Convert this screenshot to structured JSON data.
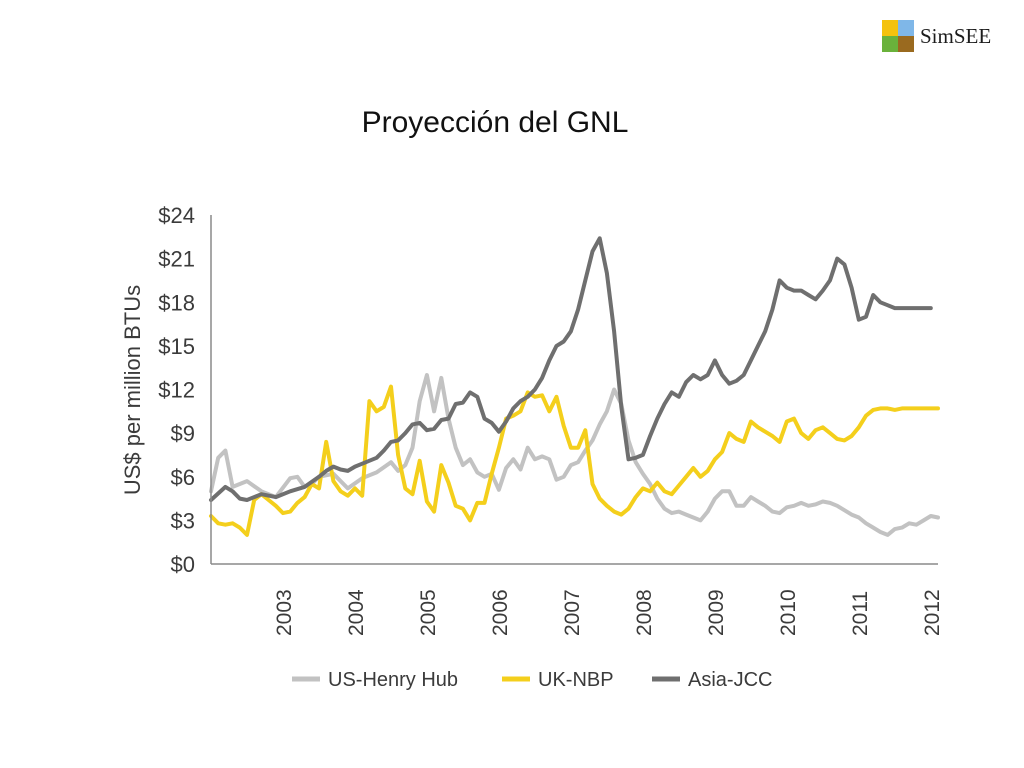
{
  "logo": {
    "text": "SimSEE",
    "colors": [
      "#f4c20d",
      "#7fb7e8",
      "#6ab23b",
      "#9a6a1f"
    ]
  },
  "page": {
    "title": "Proyección del GNL"
  },
  "chart_data": {
    "type": "line",
    "title": "",
    "ylabel": "US$ per million BTUs",
    "xlabel": "",
    "ylim": [
      0,
      24
    ],
    "xlim": [
      2002.5,
      2012.6
    ],
    "yticks": [
      0,
      3,
      6,
      9,
      12,
      15,
      18,
      21,
      24
    ],
    "yticklabels": [
      "$0",
      "$3",
      "$6",
      "$9",
      "$12",
      "$15",
      "$18",
      "$21",
      "$24"
    ],
    "xticklabels": [
      "2003",
      "2004",
      "2005",
      "2006",
      "2007",
      "2008",
      "2009",
      "2010",
      "2011",
      "2012"
    ],
    "grid": false,
    "legend_position": "bottom",
    "series": [
      {
        "name": "US-Henry Hub",
        "color": "#c2c2c2",
        "x": [
          2002.5,
          2002.6,
          2002.7,
          2002.8,
          2002.9,
          2003.0,
          2003.2,
          2003.4,
          2003.6,
          2003.7,
          2003.8,
          2003.9,
          2004.0,
          2004.2,
          2004.4,
          2004.6,
          2004.8,
          2005.0,
          2005.1,
          2005.2,
          2005.3,
          2005.4,
          2005.5,
          2005.6,
          2005.7,
          2005.8,
          2005.9,
          2006.0,
          2006.1,
          2006.2,
          2006.3,
          2006.4,
          2006.5,
          2006.6,
          2006.7,
          2006.8,
          2006.9,
          2007.0,
          2007.1,
          2007.2,
          2007.3,
          2007.4,
          2007.5,
          2007.6,
          2007.7,
          2007.8,
          2007.9,
          2008.0,
          2008.1,
          2008.2,
          2008.3,
          2008.4,
          2008.5,
          2008.6,
          2008.7,
          2008.8,
          2008.9,
          2009.0,
          2009.1,
          2009.2,
          2009.3,
          2009.4,
          2009.5,
          2009.6,
          2009.7,
          2009.8,
          2009.9,
          2010.0,
          2010.1,
          2010.2,
          2010.3,
          2010.4,
          2010.5,
          2010.6,
          2010.7,
          2010.8,
          2010.9,
          2011.0,
          2011.1,
          2011.2,
          2011.3,
          2011.4,
          2011.5,
          2011.6,
          2011.7,
          2011.8,
          2011.9,
          2012.0,
          2012.1,
          2012.2,
          2012.3,
          2012.4,
          2012.5,
          2012.6
        ],
        "y": [
          5.0,
          7.3,
          7.8,
          5.3,
          5.5,
          5.7,
          5.0,
          4.6,
          5.9,
          6.0,
          5.3,
          5.5,
          6.0,
          6.2,
          5.2,
          5.9,
          6.3,
          7.0,
          6.4,
          6.8,
          8.0,
          11.2,
          13.0,
          10.5,
          12.8,
          10.0,
          8.0,
          6.8,
          7.2,
          6.3,
          6.0,
          6.2,
          5.1,
          6.6,
          7.2,
          6.5,
          8.0,
          7.2,
          7.4,
          7.2,
          5.8,
          6.0,
          6.8,
          7.0,
          7.8,
          8.5,
          9.6,
          10.5,
          12.0,
          11.0,
          8.5,
          7.0,
          6.2,
          5.5,
          4.5,
          3.8,
          3.5,
          3.6,
          3.4,
          3.2,
          3.0,
          3.6,
          4.5,
          5.0,
          5.0,
          4.0,
          4.0,
          4.6,
          4.3,
          4.0,
          3.6,
          3.5,
          3.9,
          4.0,
          4.2,
          4.0,
          4.1,
          4.3,
          4.2,
          4.0,
          3.7,
          3.4,
          3.2,
          2.8,
          2.5,
          2.2,
          2.0,
          2.4,
          2.5,
          2.8,
          2.7,
          3.0,
          3.3,
          3.2
        ]
      },
      {
        "name": "UK-NBP",
        "color": "#f4cf1c",
        "x": [
          2002.5,
          2002.6,
          2002.7,
          2002.8,
          2002.9,
          2003.0,
          2003.1,
          2003.2,
          2003.3,
          2003.4,
          2003.5,
          2003.6,
          2003.7,
          2003.8,
          2003.9,
          2004.0,
          2004.1,
          2004.2,
          2004.3,
          2004.4,
          2004.5,
          2004.6,
          2004.7,
          2004.8,
          2004.9,
          2005.0,
          2005.1,
          2005.2,
          2005.3,
          2005.4,
          2005.5,
          2005.6,
          2005.7,
          2005.8,
          2005.9,
          2006.0,
          2006.1,
          2006.2,
          2006.3,
          2006.4,
          2006.5,
          2006.6,
          2006.7,
          2006.8,
          2006.9,
          2007.0,
          2007.1,
          2007.2,
          2007.3,
          2007.4,
          2007.5,
          2007.6,
          2007.7,
          2007.8,
          2007.9,
          2008.0,
          2008.1,
          2008.2,
          2008.3,
          2008.4,
          2008.5,
          2008.6,
          2008.7,
          2008.8,
          2008.9,
          2009.0,
          2009.1,
          2009.2,
          2009.3,
          2009.4,
          2009.5,
          2009.6,
          2009.7,
          2009.8,
          2009.9,
          2010.0,
          2010.1,
          2010.2,
          2010.3,
          2010.4,
          2010.5,
          2010.6,
          2010.7,
          2010.8,
          2010.9,
          2011.0,
          2011.1,
          2011.2,
          2011.3,
          2011.4,
          2011.5,
          2011.6,
          2011.7,
          2011.8,
          2011.9,
          2012.0,
          2012.1,
          2012.2,
          2012.3,
          2012.4,
          2012.5,
          2012.6
        ],
        "y": [
          3.3,
          2.8,
          2.7,
          2.8,
          2.5,
          2.0,
          4.4,
          4.8,
          4.4,
          4.0,
          3.5,
          3.6,
          4.2,
          4.6,
          5.5,
          5.2,
          8.4,
          5.7,
          5.0,
          4.7,
          5.2,
          4.7,
          11.2,
          10.5,
          10.8,
          12.2,
          7.5,
          5.2,
          4.8,
          7.1,
          4.3,
          3.6,
          6.8,
          5.6,
          4.0,
          3.8,
          3.0,
          4.2,
          4.2,
          6.2,
          8.0,
          10.0,
          10.2,
          10.5,
          11.8,
          11.5,
          11.6,
          10.5,
          11.5,
          9.5,
          8.0,
          8.0,
          9.2,
          5.5,
          4.5,
          4.0,
          3.6,
          3.4,
          3.8,
          4.6,
          5.2,
          5.0,
          5.6,
          5.0,
          4.8,
          5.4,
          6.0,
          6.6,
          6.0,
          6.4,
          7.2,
          7.7,
          9.0,
          8.6,
          8.4,
          9.8,
          9.4,
          9.1,
          8.8,
          8.4,
          9.8,
          10.0,
          9.0,
          8.6,
          9.2,
          9.4,
          9.0,
          8.6,
          8.5,
          8.8,
          9.4,
          10.2,
          10.6,
          10.7,
          10.7,
          10.6,
          10.7,
          10.7,
          10.7,
          10.7,
          10.7,
          10.7
        ]
      },
      {
        "name": "Asia-JCC",
        "color": "#6f6f6f",
        "x": [
          2002.5,
          2002.7,
          2002.8,
          2002.9,
          2003.0,
          2003.2,
          2003.4,
          2003.6,
          2003.8,
          2004.0,
          2004.1,
          2004.2,
          2004.3,
          2004.4,
          2004.5,
          2004.6,
          2004.8,
          2004.9,
          2005.0,
          2005.1,
          2005.2,
          2005.3,
          2005.4,
          2005.5,
          2005.6,
          2005.7,
          2005.8,
          2005.9,
          2006.0,
          2006.1,
          2006.2,
          2006.3,
          2006.4,
          2006.5,
          2006.6,
          2006.7,
          2006.8,
          2006.9,
          2007.0,
          2007.1,
          2007.2,
          2007.3,
          2007.4,
          2007.5,
          2007.6,
          2007.7,
          2007.8,
          2007.9,
          2008.0,
          2008.1,
          2008.2,
          2008.3,
          2008.4,
          2008.5,
          2008.6,
          2008.7,
          2008.8,
          2008.9,
          2009.0,
          2009.1,
          2009.2,
          2009.3,
          2009.4,
          2009.5,
          2009.6,
          2009.7,
          2009.8,
          2009.9,
          2010.0,
          2010.1,
          2010.2,
          2010.3,
          2010.4,
          2010.5,
          2010.6,
          2010.7,
          2010.8,
          2010.9,
          2011.0,
          2011.1,
          2011.2,
          2011.3,
          2011.4,
          2011.5,
          2011.6,
          2011.7,
          2011.8,
          2011.9,
          2012.0,
          2012.1,
          2012.2,
          2012.3,
          2012.4,
          2012.5
        ],
        "y": [
          4.4,
          5.3,
          5.0,
          4.5,
          4.4,
          4.8,
          4.6,
          5.0,
          5.3,
          6.0,
          6.4,
          6.7,
          6.5,
          6.4,
          6.7,
          6.9,
          7.3,
          7.8,
          8.4,
          8.5,
          9.0,
          9.6,
          9.7,
          9.2,
          9.3,
          9.9,
          10.0,
          11.0,
          11.1,
          11.8,
          11.5,
          10.0,
          9.7,
          9.1,
          9.8,
          10.7,
          11.2,
          11.5,
          12.0,
          12.8,
          14.0,
          15.0,
          15.3,
          16.0,
          17.5,
          19.5,
          21.5,
          22.4,
          20.0,
          16.0,
          10.8,
          7.2,
          7.3,
          7.5,
          8.8,
          10.0,
          11.0,
          11.8,
          11.5,
          12.5,
          13.0,
          12.7,
          13.0,
          14.0,
          13.0,
          12.4,
          12.6,
          13.0,
          14.0,
          15.0,
          16.0,
          17.5,
          19.5,
          19.0,
          18.8,
          18.8,
          18.5,
          18.2,
          18.8,
          19.5,
          21.0,
          20.6,
          19.0,
          16.8,
          17.0,
          18.5,
          18.0,
          17.8,
          17.6,
          17.6,
          17.6,
          17.6,
          17.6,
          17.6
        ]
      }
    ]
  }
}
